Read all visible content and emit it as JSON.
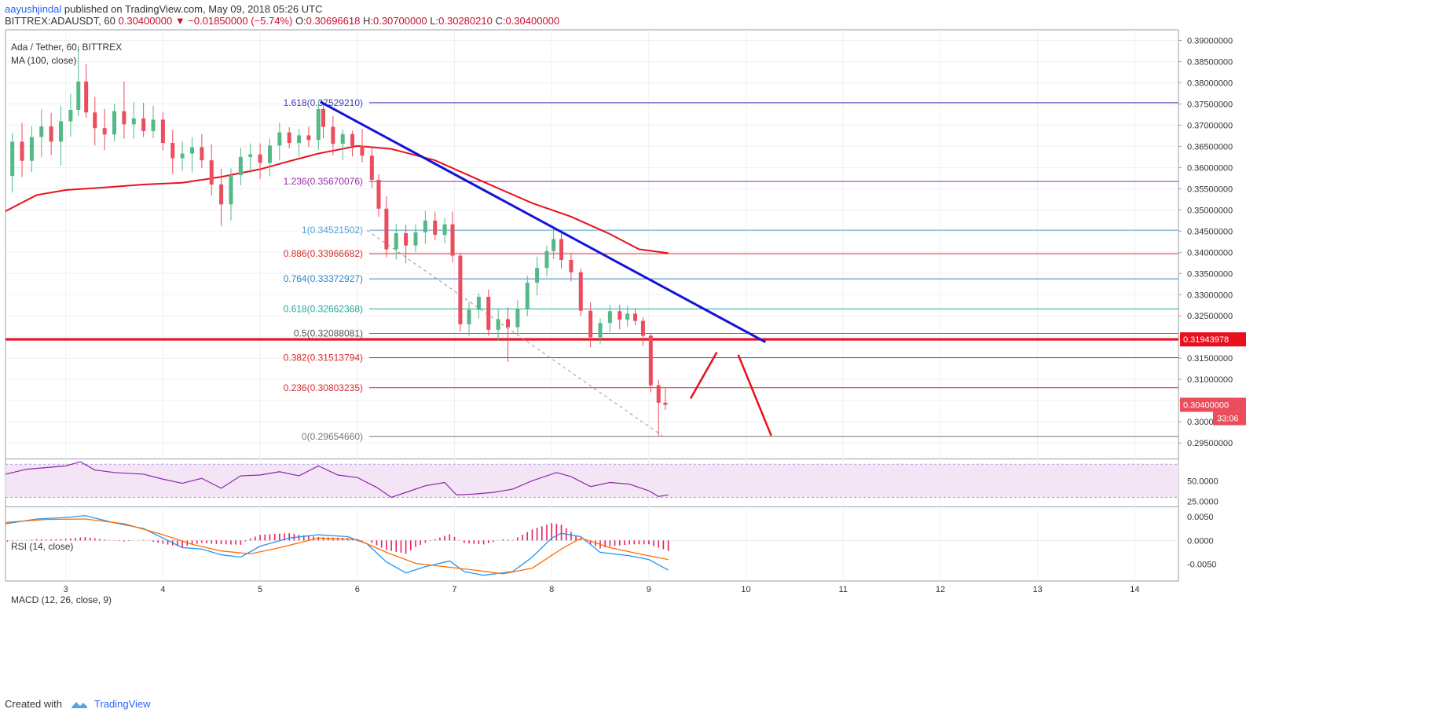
{
  "header": {
    "author": "aayushjindal",
    "published_text": "published on TradingView.com, May 09, 2018 05:26 UTC",
    "symbol": "BITTREX:ADAUSDT, 60",
    "last": "0.30400000",
    "change": "−0.01850000 (−5.74%)",
    "o_label": "O:",
    "o_val": "0.30696618",
    "h_label": "H:",
    "h_val": "0.30700000",
    "l_label": "L:",
    "l_val": "0.30280210",
    "c_label": "C:",
    "c_val": "0.30400000"
  },
  "footer": {
    "created_with": "Created with",
    "brand": "TradingView"
  },
  "chart_data": {
    "type": "candlestick",
    "title": "Ada / Tether, 60, BITTREX",
    "ma_label": "MA (100, close)",
    "ylim": [
      0.2915,
      0.3925
    ],
    "y_ticks": [
      "0.29500000",
      "0.30000000",
      "0.30500000",
      "0.31000000",
      "0.31500000",
      "0.32000000",
      "0.32500000",
      "0.33000000",
      "0.33500000",
      "0.34000000",
      "0.34500000",
      "0.35000000",
      "0.35500000",
      "0.36000000",
      "0.36500000",
      "0.37000000",
      "0.37500000",
      "0.38000000",
      "0.38500000",
      "0.39000000"
    ],
    "x_ticks": [
      "3",
      "4",
      "5",
      "6",
      "7",
      "8",
      "9",
      "10",
      "11",
      "12",
      "13",
      "14"
    ],
    "x_range": [
      2.38,
      14.45
    ],
    "colors": {
      "up": "#53b987",
      "down": "#eb4d5c",
      "ma": "#e8101e",
      "trend": "#1414d8",
      "rsi": "#8e24aa",
      "macd": "#2196f3",
      "signal": "#ff6d00",
      "hist": "#e91e63"
    },
    "last_price": "0.30400000",
    "countdown": "33:06",
    "price_tag": "0.31943978",
    "support_level": 0.31943978,
    "fib_levels": [
      {
        "label": "1.618(0.37529210)",
        "value": 0.3752921,
        "color": "#3f3fb8"
      },
      {
        "label": "1.236(0.35670076)",
        "value": 0.35670076,
        "color": "#9c27b0"
      },
      {
        "label": "1(0.34521502)",
        "value": 0.34521502,
        "color": "#4fa3d1"
      },
      {
        "label": "0.886(0.33966682)",
        "value": 0.33966682,
        "color": "#d32f2f"
      },
      {
        "label": "0.764(0.33372927)",
        "value": 0.33372927,
        "color": "#2e86c1"
      },
      {
        "label": "0.618(0.32662368)",
        "value": 0.32662368,
        "color": "#26a69a"
      },
      {
        "label": "0.5(0.32088081)",
        "value": 0.32088081,
        "color": "#555555"
      },
      {
        "label": "0.382(0.31513794)",
        "value": 0.31513794,
        "color": "#d32f2f"
      },
      {
        "label": "0.236(0.30803235)",
        "value": 0.30803235,
        "color": "#d32f2f"
      },
      {
        "label": "0(0.29654660)",
        "value": 0.2965466,
        "color": "#777777"
      }
    ],
    "trendline": [
      [
        5.62,
        0.3755
      ],
      [
        10.2,
        0.3188
      ]
    ],
    "dashed_line": [
      [
        6.1,
        0.3452
      ],
      [
        9.15,
        0.2965
      ]
    ],
    "forecast_arrows": [
      [
        [
          9.43,
          0.3055
        ],
        [
          9.7,
          0.3164
        ]
      ],
      [
        [
          9.92,
          0.3158
        ],
        [
          10.26,
          0.2967
        ]
      ]
    ],
    "candles": [
      {
        "t": 2.45,
        "o": 0.358,
        "h": 0.3681,
        "l": 0.3541,
        "c": 0.3661
      },
      {
        "t": 2.55,
        "o": 0.3661,
        "h": 0.3705,
        "l": 0.3578,
        "c": 0.3616
      },
      {
        "t": 2.65,
        "o": 0.3616,
        "h": 0.3697,
        "l": 0.3589,
        "c": 0.3672
      },
      {
        "t": 2.75,
        "o": 0.3672,
        "h": 0.3737,
        "l": 0.3624,
        "c": 0.3697
      },
      {
        "t": 2.85,
        "o": 0.3697,
        "h": 0.3729,
        "l": 0.3629,
        "c": 0.3661
      },
      {
        "t": 2.95,
        "o": 0.3661,
        "h": 0.3745,
        "l": 0.3605,
        "c": 0.3709
      },
      {
        "t": 3.05,
        "o": 0.3709,
        "h": 0.3774,
        "l": 0.3673,
        "c": 0.3736
      },
      {
        "t": 3.13,
        "o": 0.3736,
        "h": 0.3889,
        "l": 0.3721,
        "c": 0.3803
      },
      {
        "t": 3.21,
        "o": 0.3803,
        "h": 0.3844,
        "l": 0.3718,
        "c": 0.373
      },
      {
        "t": 3.3,
        "o": 0.373,
        "h": 0.3767,
        "l": 0.3652,
        "c": 0.3693
      },
      {
        "t": 3.4,
        "o": 0.3693,
        "h": 0.3738,
        "l": 0.3641,
        "c": 0.3678
      },
      {
        "t": 3.5,
        "o": 0.3678,
        "h": 0.3751,
        "l": 0.3662,
        "c": 0.3733
      },
      {
        "t": 3.6,
        "o": 0.3733,
        "h": 0.3803,
        "l": 0.3668,
        "c": 0.3702
      },
      {
        "t": 3.7,
        "o": 0.3702,
        "h": 0.3754,
        "l": 0.3668,
        "c": 0.3716
      },
      {
        "t": 3.8,
        "o": 0.3716,
        "h": 0.3753,
        "l": 0.3672,
        "c": 0.3686
      },
      {
        "t": 3.9,
        "o": 0.3686,
        "h": 0.3746,
        "l": 0.3669,
        "c": 0.3713
      },
      {
        "t": 4.0,
        "o": 0.3713,
        "h": 0.3731,
        "l": 0.364,
        "c": 0.3658
      },
      {
        "t": 4.1,
        "o": 0.3658,
        "h": 0.3689,
        "l": 0.3585,
        "c": 0.3622
      },
      {
        "t": 4.2,
        "o": 0.3622,
        "h": 0.3661,
        "l": 0.3593,
        "c": 0.3633
      },
      {
        "t": 4.3,
        "o": 0.3633,
        "h": 0.3671,
        "l": 0.3588,
        "c": 0.3648
      },
      {
        "t": 4.4,
        "o": 0.3648,
        "h": 0.3679,
        "l": 0.3599,
        "c": 0.3617
      },
      {
        "t": 4.5,
        "o": 0.3617,
        "h": 0.3655,
        "l": 0.3534,
        "c": 0.356
      },
      {
        "t": 4.6,
        "o": 0.356,
        "h": 0.3597,
        "l": 0.3462,
        "c": 0.3513
      },
      {
        "t": 4.7,
        "o": 0.3513,
        "h": 0.3598,
        "l": 0.3475,
        "c": 0.3582
      },
      {
        "t": 4.8,
        "o": 0.3582,
        "h": 0.3647,
        "l": 0.3558,
        "c": 0.3625
      },
      {
        "t": 4.9,
        "o": 0.3625,
        "h": 0.3657,
        "l": 0.3586,
        "c": 0.3631
      },
      {
        "t": 5.0,
        "o": 0.3631,
        "h": 0.3657,
        "l": 0.3573,
        "c": 0.3611
      },
      {
        "t": 5.1,
        "o": 0.3611,
        "h": 0.3668,
        "l": 0.3579,
        "c": 0.3652
      },
      {
        "t": 5.2,
        "o": 0.3652,
        "h": 0.3706,
        "l": 0.3617,
        "c": 0.3683
      },
      {
        "t": 5.3,
        "o": 0.3683,
        "h": 0.3695,
        "l": 0.3645,
        "c": 0.3658
      },
      {
        "t": 5.4,
        "o": 0.3658,
        "h": 0.3691,
        "l": 0.3626,
        "c": 0.3676
      },
      {
        "t": 5.5,
        "o": 0.3676,
        "h": 0.3696,
        "l": 0.3648,
        "c": 0.3665
      },
      {
        "t": 5.6,
        "o": 0.3665,
        "h": 0.3757,
        "l": 0.3642,
        "c": 0.3738
      },
      {
        "t": 5.65,
        "o": 0.3738,
        "h": 0.3751,
        "l": 0.3669,
        "c": 0.3696
      },
      {
        "t": 5.75,
        "o": 0.3696,
        "h": 0.3722,
        "l": 0.3629,
        "c": 0.3656
      },
      {
        "t": 5.85,
        "o": 0.3656,
        "h": 0.369,
        "l": 0.3618,
        "c": 0.3679
      },
      {
        "t": 5.95,
        "o": 0.3679,
        "h": 0.3687,
        "l": 0.3626,
        "c": 0.3651
      },
      {
        "t": 6.05,
        "o": 0.3651,
        "h": 0.3691,
        "l": 0.3612,
        "c": 0.3628
      },
      {
        "t": 6.15,
        "o": 0.3628,
        "h": 0.3648,
        "l": 0.3552,
        "c": 0.3571
      },
      {
        "t": 6.22,
        "o": 0.3571,
        "h": 0.3584,
        "l": 0.3484,
        "c": 0.3503
      },
      {
        "t": 6.3,
        "o": 0.3503,
        "h": 0.3532,
        "l": 0.3388,
        "c": 0.3407
      },
      {
        "t": 6.4,
        "o": 0.3407,
        "h": 0.3467,
        "l": 0.3383,
        "c": 0.3445
      },
      {
        "t": 6.5,
        "o": 0.3445,
        "h": 0.3465,
        "l": 0.3374,
        "c": 0.3416
      },
      {
        "t": 6.6,
        "o": 0.3416,
        "h": 0.3466,
        "l": 0.3401,
        "c": 0.3447
      },
      {
        "t": 6.7,
        "o": 0.3447,
        "h": 0.3498,
        "l": 0.342,
        "c": 0.3475
      },
      {
        "t": 6.8,
        "o": 0.3475,
        "h": 0.3496,
        "l": 0.3428,
        "c": 0.3441
      },
      {
        "t": 6.9,
        "o": 0.3441,
        "h": 0.3481,
        "l": 0.3421,
        "c": 0.3466
      },
      {
        "t": 6.98,
        "o": 0.3466,
        "h": 0.3496,
        "l": 0.3376,
        "c": 0.3392
      },
      {
        "t": 7.06,
        "o": 0.3392,
        "h": 0.3398,
        "l": 0.3213,
        "c": 0.323
      },
      {
        "t": 7.15,
        "o": 0.323,
        "h": 0.3283,
        "l": 0.3203,
        "c": 0.3264
      },
      {
        "t": 7.25,
        "o": 0.3264,
        "h": 0.3304,
        "l": 0.3244,
        "c": 0.3295
      },
      {
        "t": 7.35,
        "o": 0.3295,
        "h": 0.3312,
        "l": 0.3203,
        "c": 0.3217
      },
      {
        "t": 7.45,
        "o": 0.3217,
        "h": 0.3265,
        "l": 0.3192,
        "c": 0.3242
      },
      {
        "t": 7.55,
        "o": 0.3242,
        "h": 0.327,
        "l": 0.3141,
        "c": 0.3223
      },
      {
        "t": 7.65,
        "o": 0.3223,
        "h": 0.3287,
        "l": 0.3208,
        "c": 0.3266
      },
      {
        "t": 7.75,
        "o": 0.3266,
        "h": 0.3345,
        "l": 0.3249,
        "c": 0.3328
      },
      {
        "t": 7.85,
        "o": 0.3328,
        "h": 0.339,
        "l": 0.3298,
        "c": 0.3363
      },
      {
        "t": 7.95,
        "o": 0.3363,
        "h": 0.3416,
        "l": 0.3343,
        "c": 0.3403
      },
      {
        "t": 8.02,
        "o": 0.3403,
        "h": 0.3456,
        "l": 0.3384,
        "c": 0.3431
      },
      {
        "t": 8.1,
        "o": 0.3431,
        "h": 0.3448,
        "l": 0.3361,
        "c": 0.3382
      },
      {
        "t": 8.2,
        "o": 0.3382,
        "h": 0.3396,
        "l": 0.3331,
        "c": 0.3353
      },
      {
        "t": 8.3,
        "o": 0.3353,
        "h": 0.3362,
        "l": 0.3249,
        "c": 0.3262
      },
      {
        "t": 8.4,
        "o": 0.3262,
        "h": 0.3282,
        "l": 0.3176,
        "c": 0.3199
      },
      {
        "t": 8.5,
        "o": 0.3199,
        "h": 0.3244,
        "l": 0.3184,
        "c": 0.3233
      },
      {
        "t": 8.6,
        "o": 0.3233,
        "h": 0.3276,
        "l": 0.3211,
        "c": 0.3261
      },
      {
        "t": 8.7,
        "o": 0.3261,
        "h": 0.3276,
        "l": 0.3218,
        "c": 0.3241
      },
      {
        "t": 8.78,
        "o": 0.3241,
        "h": 0.3274,
        "l": 0.3225,
        "c": 0.3255
      },
      {
        "t": 8.86,
        "o": 0.3255,
        "h": 0.3267,
        "l": 0.3228,
        "c": 0.3238
      },
      {
        "t": 8.94,
        "o": 0.3238,
        "h": 0.3247,
        "l": 0.3179,
        "c": 0.3203
      },
      {
        "t": 9.02,
        "o": 0.3203,
        "h": 0.3209,
        "l": 0.3069,
        "c": 0.3086
      },
      {
        "t": 9.1,
        "o": 0.3086,
        "h": 0.3099,
        "l": 0.2966,
        "c": 0.3045
      },
      {
        "t": 9.17,
        "o": 0.3045,
        "h": 0.3079,
        "l": 0.3028,
        "c": 0.304
      }
    ],
    "ma": [
      {
        "t": 2.38,
        "v": 0.3497
      },
      {
        "t": 2.7,
        "v": 0.3535
      },
      {
        "t": 3.0,
        "v": 0.3547
      },
      {
        "t": 3.4,
        "v": 0.3553
      },
      {
        "t": 3.8,
        "v": 0.356
      },
      {
        "t": 4.2,
        "v": 0.3564
      },
      {
        "t": 4.6,
        "v": 0.3578
      },
      {
        "t": 5.0,
        "v": 0.3596
      },
      {
        "t": 5.3,
        "v": 0.3615
      },
      {
        "t": 5.6,
        "v": 0.3633
      },
      {
        "t": 6.0,
        "v": 0.3651
      },
      {
        "t": 6.35,
        "v": 0.3644
      },
      {
        "t": 6.8,
        "v": 0.3617
      },
      {
        "t": 7.3,
        "v": 0.3566
      },
      {
        "t": 7.8,
        "v": 0.3516
      },
      {
        "t": 8.2,
        "v": 0.3484
      },
      {
        "t": 8.6,
        "v": 0.3443
      },
      {
        "t": 8.9,
        "v": 0.3407
      },
      {
        "t": 9.2,
        "v": 0.3398
      }
    ],
    "rsi": {
      "label": "RSI (14, close)",
      "ylim": [
        20,
        75
      ],
      "ticks": [
        "50.0000",
        "25.0000"
      ],
      "band": [
        30,
        70
      ],
      "values": [
        {
          "t": 2.38,
          "v": 58
        },
        {
          "t": 2.6,
          "v": 64
        },
        {
          "t": 2.8,
          "v": 66
        },
        {
          "t": 3.0,
          "v": 68
        },
        {
          "t": 3.15,
          "v": 73
        },
        {
          "t": 3.3,
          "v": 63
        },
        {
          "t": 3.5,
          "v": 60
        },
        {
          "t": 3.8,
          "v": 58
        },
        {
          "t": 4.0,
          "v": 52
        },
        {
          "t": 4.2,
          "v": 47
        },
        {
          "t": 4.4,
          "v": 53
        },
        {
          "t": 4.6,
          "v": 41
        },
        {
          "t": 4.8,
          "v": 56
        },
        {
          "t": 5.0,
          "v": 57
        },
        {
          "t": 5.2,
          "v": 61
        },
        {
          "t": 5.4,
          "v": 56
        },
        {
          "t": 5.6,
          "v": 68
        },
        {
          "t": 5.8,
          "v": 57
        },
        {
          "t": 6.0,
          "v": 54
        },
        {
          "t": 6.2,
          "v": 42
        },
        {
          "t": 6.35,
          "v": 30
        },
        {
          "t": 6.5,
          "v": 36
        },
        {
          "t": 6.7,
          "v": 44
        },
        {
          "t": 6.9,
          "v": 48
        },
        {
          "t": 7.02,
          "v": 33
        },
        {
          "t": 7.2,
          "v": 34
        },
        {
          "t": 7.4,
          "v": 36
        },
        {
          "t": 7.6,
          "v": 40
        },
        {
          "t": 7.8,
          "v": 50
        },
        {
          "t": 8.05,
          "v": 60
        },
        {
          "t": 8.2,
          "v": 55
        },
        {
          "t": 8.4,
          "v": 43
        },
        {
          "t": 8.6,
          "v": 48
        },
        {
          "t": 8.8,
          "v": 46
        },
        {
          "t": 9.0,
          "v": 38
        },
        {
          "t": 9.1,
          "v": 31
        },
        {
          "t": 9.2,
          "v": 33
        }
      ]
    },
    "macd": {
      "label": "MACD (12, 26, close, 9)",
      "ylim": [
        -0.0085,
        0.0068
      ],
      "ticks": [
        "0.0050",
        "0.0000",
        "-0.0050"
      ],
      "tick_values": [
        0.005,
        0,
        -0.005
      ],
      "macd": [
        {
          "t": 2.38,
          "v": 0.0035
        },
        {
          "t": 2.7,
          "v": 0.0045
        },
        {
          "t": 3.0,
          "v": 0.0048
        },
        {
          "t": 3.2,
          "v": 0.0052
        },
        {
          "t": 3.5,
          "v": 0.0037
        },
        {
          "t": 3.8,
          "v": 0.0025
        },
        {
          "t": 4.0,
          "v": 0.0005
        },
        {
          "t": 4.2,
          "v": -0.0015
        },
        {
          "t": 4.4,
          "v": -0.0018
        },
        {
          "t": 4.6,
          "v": -0.003
        },
        {
          "t": 4.8,
          "v": -0.0035
        },
        {
          "t": 5.0,
          "v": -0.0012
        },
        {
          "t": 5.3,
          "v": 0.0005
        },
        {
          "t": 5.6,
          "v": 0.0012
        },
        {
          "t": 5.9,
          "v": 0.0008
        },
        {
          "t": 6.1,
          "v": -0.0007
        },
        {
          "t": 6.3,
          "v": -0.0045
        },
        {
          "t": 6.5,
          "v": -0.0068
        },
        {
          "t": 6.7,
          "v": -0.0055
        },
        {
          "t": 6.95,
          "v": -0.0043
        },
        {
          "t": 7.1,
          "v": -0.0065
        },
        {
          "t": 7.3,
          "v": -0.0073
        },
        {
          "t": 7.6,
          "v": -0.0065
        },
        {
          "t": 7.8,
          "v": -0.0035
        },
        {
          "t": 8.0,
          "v": 0.0005
        },
        {
          "t": 8.1,
          "v": 0.0015
        },
        {
          "t": 8.3,
          "v": 0.0008
        },
        {
          "t": 8.5,
          "v": -0.0025
        },
        {
          "t": 8.8,
          "v": -0.0032
        },
        {
          "t": 9.0,
          "v": -0.004
        },
        {
          "t": 9.2,
          "v": -0.0062
        }
      ],
      "signal": [
        {
          "t": 2.38,
          "v": 0.0038
        },
        {
          "t": 2.8,
          "v": 0.0044
        },
        {
          "t": 3.2,
          "v": 0.0045
        },
        {
          "t": 3.6,
          "v": 0.0035
        },
        {
          "t": 4.0,
          "v": 0.0012
        },
        {
          "t": 4.3,
          "v": -0.0008
        },
        {
          "t": 4.6,
          "v": -0.0022
        },
        {
          "t": 4.9,
          "v": -0.0028
        },
        {
          "t": 5.2,
          "v": -0.0015
        },
        {
          "t": 5.6,
          "v": 0.0005
        },
        {
          "t": 6.0,
          "v": 0.0002
        },
        {
          "t": 6.3,
          "v": -0.0025
        },
        {
          "t": 6.6,
          "v": -0.0048
        },
        {
          "t": 6.9,
          "v": -0.0055
        },
        {
          "t": 7.2,
          "v": -0.0062
        },
        {
          "t": 7.5,
          "v": -0.007
        },
        {
          "t": 7.8,
          "v": -0.0058
        },
        {
          "t": 8.1,
          "v": -0.0018
        },
        {
          "t": 8.3,
          "v": 0.0005
        },
        {
          "t": 8.6,
          "v": -0.0015
        },
        {
          "t": 8.9,
          "v": -0.0028
        },
        {
          "t": 9.2,
          "v": -0.004
        }
      ]
    }
  }
}
